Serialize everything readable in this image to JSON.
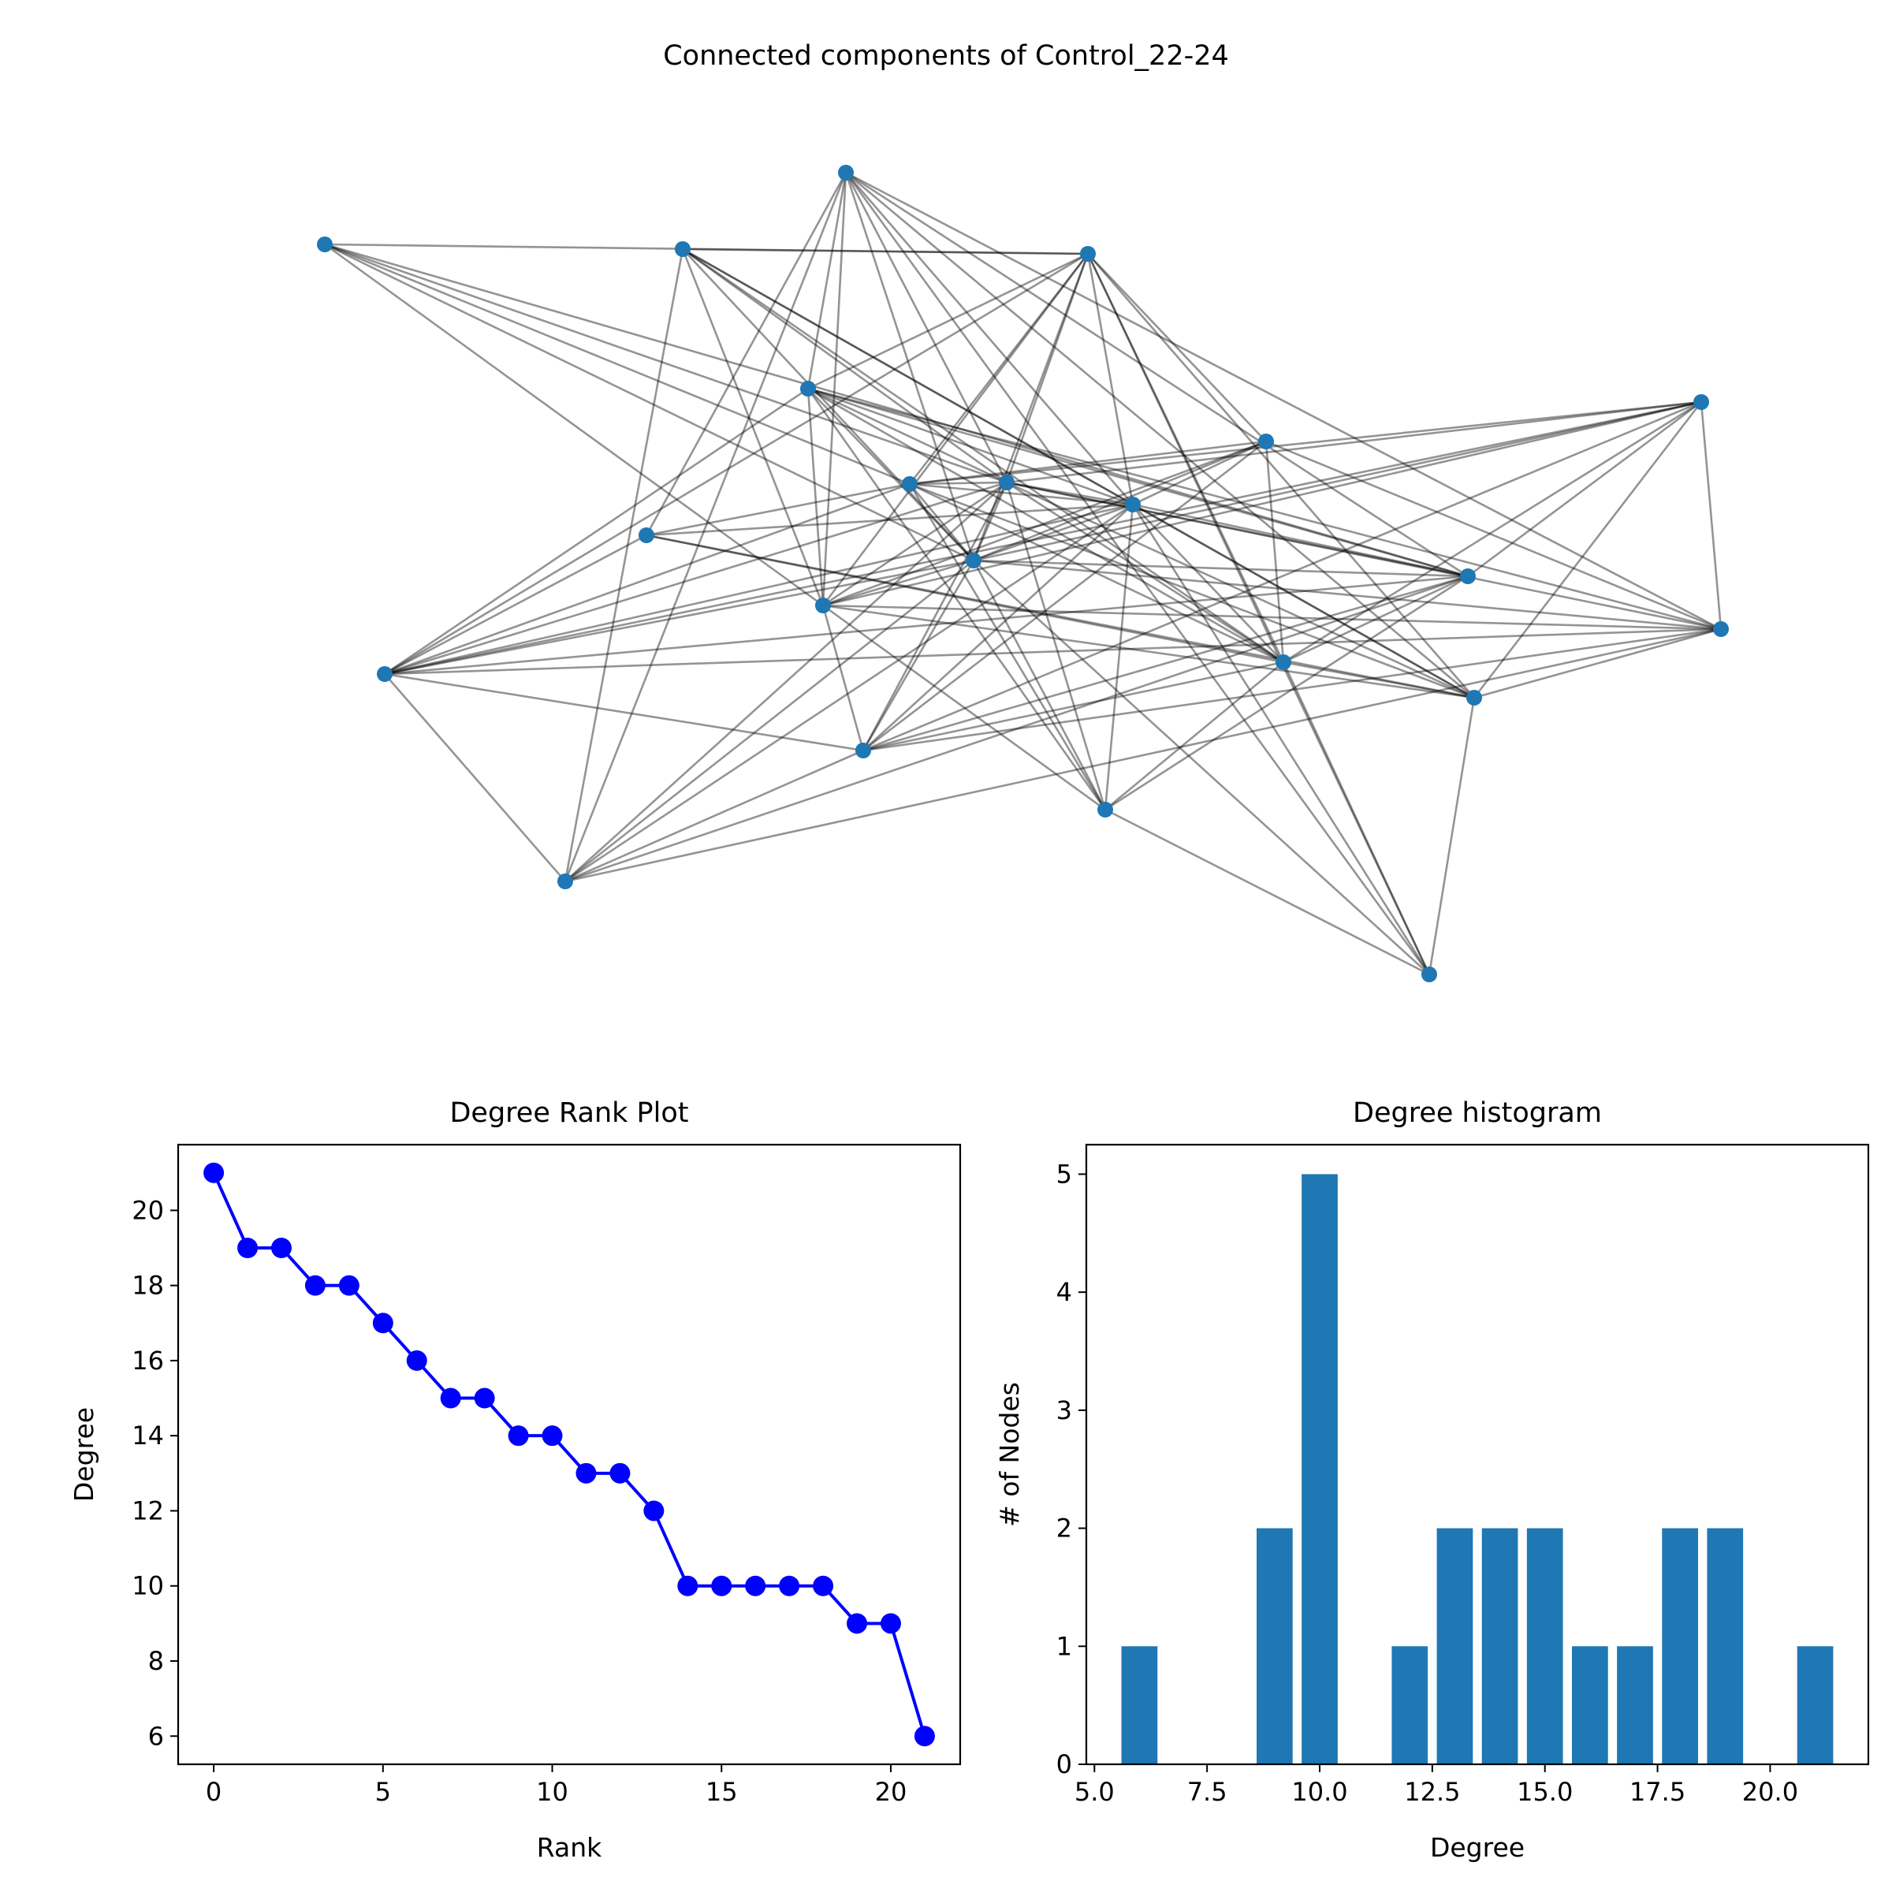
{
  "figure": {
    "network_title": "Connected components of Control_22-24"
  },
  "chart_data": [
    {
      "type": "network",
      "title": "Connected components of Control_22-24",
      "node_color": "#1f77b4",
      "edge_color": "#000000",
      "node_count": 22,
      "edges": [
        [
          4,
          3
        ],
        [
          4,
          10
        ],
        [
          4,
          8
        ],
        [
          4,
          12
        ],
        [
          4,
          13
        ],
        [
          4,
          11
        ],
        [
          4,
          14
        ],
        [
          4,
          19
        ],
        [
          4,
          16
        ],
        [
          4,
          15
        ],
        [
          4,
          2
        ],
        [
          1,
          3
        ],
        [
          1,
          8
        ],
        [
          1,
          12
        ],
        [
          1,
          10
        ],
        [
          1,
          11
        ],
        [
          1,
          14
        ],
        [
          1,
          20
        ],
        [
          1,
          17
        ],
        [
          0,
          3
        ],
        [
          0,
          8
        ],
        [
          0,
          12
        ],
        [
          0,
          11
        ],
        [
          0,
          13
        ],
        [
          0,
          9
        ],
        [
          2,
          8
        ],
        [
          2,
          7
        ],
        [
          2,
          10
        ],
        [
          2,
          11
        ],
        [
          2,
          12
        ],
        [
          2,
          13
        ],
        [
          2,
          15
        ],
        [
          2,
          17
        ],
        [
          2,
          20
        ],
        [
          2,
          21
        ],
        [
          3,
          5
        ],
        [
          3,
          10
        ],
        [
          3,
          11
        ],
        [
          3,
          12
        ],
        [
          3,
          14
        ],
        [
          3,
          16
        ],
        [
          3,
          17
        ],
        [
          3,
          21
        ],
        [
          3,
          8
        ],
        [
          3,
          9
        ],
        [
          5,
          10
        ],
        [
          5,
          11
        ],
        [
          5,
          14
        ],
        [
          5,
          15
        ],
        [
          5,
          18
        ],
        [
          5,
          9
        ],
        [
          5,
          12
        ],
        [
          6,
          8
        ],
        [
          6,
          13
        ],
        [
          6,
          14
        ],
        [
          6,
          15
        ],
        [
          6,
          17
        ],
        [
          6,
          16
        ],
        [
          6,
          9
        ],
        [
          6,
          11
        ],
        [
          6,
          12
        ],
        [
          6,
          18
        ],
        [
          7,
          9
        ],
        [
          7,
          10
        ],
        [
          7,
          14
        ],
        [
          7,
          16
        ],
        [
          7,
          17
        ],
        [
          8,
          9
        ],
        [
          8,
          10
        ],
        [
          8,
          11
        ],
        [
          8,
          12
        ],
        [
          8,
          13
        ],
        [
          8,
          14
        ],
        [
          8,
          15
        ],
        [
          8,
          16
        ],
        [
          8,
          17
        ],
        [
          8,
          18
        ],
        [
          8,
          19
        ],
        [
          8,
          20
        ],
        [
          9,
          10
        ],
        [
          9,
          11
        ],
        [
          9,
          14
        ],
        [
          9,
          16
        ],
        [
          9,
          17
        ],
        [
          9,
          19
        ],
        [
          10,
          11
        ],
        [
          10,
          13
        ],
        [
          10,
          14
        ],
        [
          10,
          16
        ],
        [
          10,
          17
        ],
        [
          10,
          18
        ],
        [
          10,
          19
        ],
        [
          10,
          20
        ],
        [
          10,
          21
        ],
        [
          11,
          12
        ],
        [
          11,
          13
        ],
        [
          11,
          15
        ],
        [
          11,
          16
        ],
        [
          11,
          18
        ],
        [
          11,
          19
        ],
        [
          11,
          20
        ],
        [
          11,
          21
        ],
        [
          12,
          15
        ],
        [
          12,
          17
        ],
        [
          12,
          18
        ],
        [
          12,
          19
        ],
        [
          13,
          14
        ],
        [
          13,
          16
        ],
        [
          13,
          18
        ],
        [
          13,
          19
        ],
        [
          13,
          20
        ],
        [
          14,
          17
        ],
        [
          14,
          18
        ],
        [
          14,
          19
        ],
        [
          14,
          21
        ],
        [
          15,
          16
        ],
        [
          15,
          17
        ],
        [
          15,
          18
        ],
        [
          15,
          20
        ],
        [
          16,
          18
        ],
        [
          16,
          20
        ],
        [
          17,
          21
        ],
        [
          18,
          20
        ],
        [
          19,
          21
        ]
      ]
    },
    {
      "type": "line",
      "title": "Degree Rank Plot",
      "xlabel": "Rank",
      "ylabel": "Degree",
      "color": "#0000ff",
      "x": [
        0,
        1,
        2,
        3,
        4,
        5,
        6,
        7,
        8,
        9,
        10,
        11,
        12,
        13,
        14,
        15,
        16,
        17,
        18,
        19,
        20,
        21
      ],
      "y": [
        21,
        19,
        19,
        18,
        18,
        17,
        16,
        15,
        15,
        14,
        14,
        13,
        13,
        12,
        10,
        10,
        10,
        10,
        10,
        9,
        9,
        6
      ],
      "xlim": [
        -1.05,
        22.05
      ],
      "ylim": [
        5.25,
        21.75
      ],
      "xticks": [
        0,
        5,
        10,
        15,
        20
      ],
      "yticks": [
        6,
        8,
        10,
        12,
        14,
        16,
        18,
        20
      ]
    },
    {
      "type": "bar",
      "title": "Degree histogram",
      "xlabel": "Degree",
      "ylabel": "# of Nodes",
      "color": "#1f77b4",
      "categories": [
        6,
        9,
        10,
        12,
        13,
        14,
        15,
        16,
        17,
        18,
        19,
        21
      ],
      "values": [
        1,
        2,
        5,
        1,
        2,
        2,
        2,
        1,
        1,
        2,
        2,
        1
      ],
      "bar_width": 0.8,
      "xlim": [
        4.82,
        22.18
      ],
      "ylim": [
        0,
        5.25
      ],
      "xticks": [
        "5.0",
        "7.5",
        "10.0",
        "12.5",
        "15.0",
        "17.5",
        "20.0"
      ],
      "xtick_values": [
        5.0,
        7.5,
        10.0,
        12.5,
        15.0,
        17.5,
        20.0
      ],
      "yticks": [
        0,
        1,
        2,
        3,
        4,
        5
      ]
    }
  ]
}
